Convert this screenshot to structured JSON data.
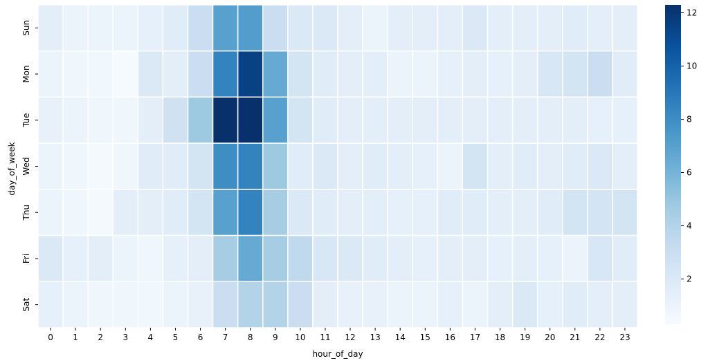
{
  "chart_data": {
    "type": "heatmap",
    "title": "",
    "xlabel": "hour_of_day",
    "ylabel": "day_of_week",
    "x_categories": [
      "0",
      "1",
      "2",
      "3",
      "4",
      "5",
      "6",
      "7",
      "8",
      "9",
      "10",
      "11",
      "12",
      "13",
      "14",
      "15",
      "16",
      "17",
      "18",
      "19",
      "20",
      "21",
      "22",
      "23"
    ],
    "y_categories": [
      "Sun",
      "Mon",
      "Tue",
      "Wed",
      "Thu",
      "Fri",
      "Sat"
    ],
    "values": [
      [
        1.5,
        1.0,
        1.0,
        1.0,
        1.3,
        1.7,
        3.0,
        7.0,
        7.2,
        3.0,
        2.0,
        2.0,
        1.5,
        1.0,
        1.5,
        1.5,
        1.5,
        2.0,
        1.5,
        1.5,
        1.5,
        1.7,
        1.5,
        1.5
      ],
      [
        1.0,
        0.8,
        0.7,
        0.4,
        2.0,
        1.5,
        3.0,
        8.5,
        11.5,
        6.5,
        2.5,
        1.7,
        1.5,
        1.5,
        1.0,
        1.0,
        1.3,
        1.5,
        1.3,
        1.5,
        2.2,
        2.5,
        3.0,
        1.7
      ],
      [
        1.2,
        1.0,
        0.8,
        0.8,
        1.5,
        2.7,
        4.8,
        12.3,
        12.3,
        7.0,
        2.5,
        1.7,
        1.5,
        1.5,
        1.5,
        1.5,
        1.5,
        1.5,
        1.5,
        1.5,
        1.5,
        1.5,
        1.3,
        1.3
      ],
      [
        1.0,
        0.8,
        0.5,
        0.8,
        1.7,
        1.7,
        2.5,
        8.0,
        8.5,
        4.8,
        1.7,
        2.0,
        1.5,
        1.7,
        1.5,
        1.3,
        1.0,
        2.5,
        1.5,
        1.7,
        1.5,
        1.7,
        2.0,
        1.5
      ],
      [
        1.0,
        0.8,
        0.5,
        1.5,
        1.5,
        1.7,
        2.5,
        7.0,
        8.5,
        4.5,
        2.0,
        1.7,
        1.5,
        1.5,
        1.3,
        1.3,
        1.7,
        1.7,
        1.5,
        1.5,
        1.7,
        2.5,
        2.5,
        2.5
      ],
      [
        2.0,
        1.3,
        1.5,
        1.0,
        0.8,
        1.3,
        1.5,
        4.5,
        6.5,
        4.5,
        3.5,
        2.2,
        2.0,
        1.7,
        1.5,
        1.3,
        1.5,
        1.5,
        1.3,
        1.5,
        1.3,
        1.0,
        2.2,
        1.7
      ],
      [
        1.3,
        1.0,
        0.8,
        0.8,
        0.7,
        1.0,
        1.2,
        3.0,
        4.0,
        4.0,
        3.0,
        1.5,
        1.2,
        1.2,
        1.0,
        1.0,
        1.3,
        1.0,
        1.5,
        2.0,
        1.3,
        1.7,
        1.5,
        1.5
      ]
    ],
    "vmin": 0.3,
    "vmax": 12.3,
    "colorbar_ticks": [
      2,
      4,
      6,
      8,
      10,
      12
    ],
    "colormap": "Blues",
    "colors": [
      "#f7fbff",
      "#deebf7",
      "#c6dbef",
      "#9ecae1",
      "#6baed6",
      "#4292c6",
      "#2171b5",
      "#08519c",
      "#08306b"
    ],
    "grid_line_color": "#ffffff",
    "colorbar_position": "right"
  }
}
